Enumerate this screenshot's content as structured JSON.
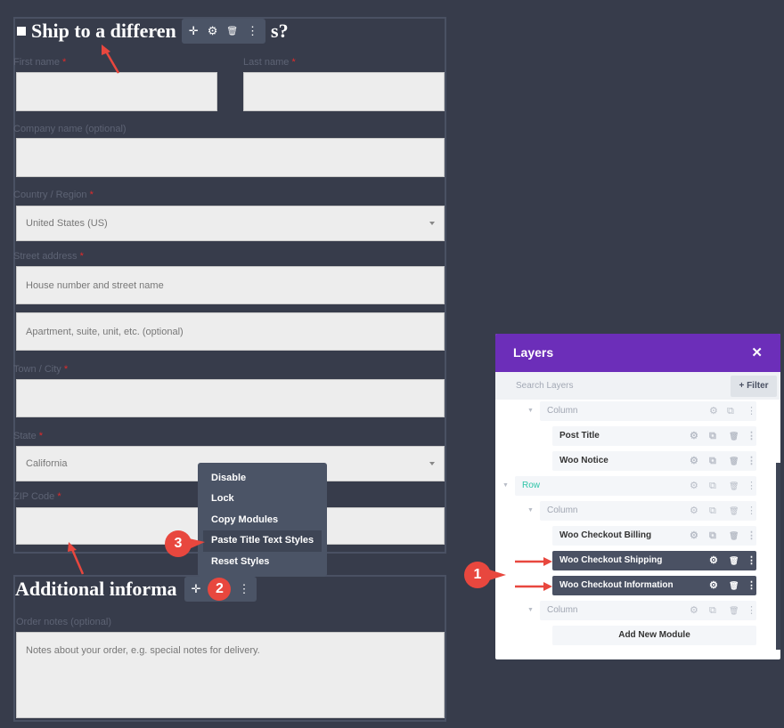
{
  "shipping": {
    "heading": "Ship to a differen",
    "heading_tail": "s?",
    "first_name": "First name",
    "last_name": "Last name",
    "company": "Company name (optional)",
    "country": "Country / Region",
    "country_value": "United States (US)",
    "street": "Street address",
    "street_ph1": "House number and street name",
    "street_ph2": "Apartment, suite, unit, etc. (optional)",
    "town": "Town / City",
    "state": "State",
    "state_value": "California",
    "zip": "ZIP Code",
    "required": "*"
  },
  "additional": {
    "heading": "Additional informa",
    "notes_label": "Order notes (optional)",
    "notes_ph": "Notes about your order, e.g. special notes for delivery."
  },
  "toolbar": {
    "move": "✛",
    "settings": "⚙",
    "delete": "🗑",
    "more": "⋮"
  },
  "context_menu": {
    "items": [
      "Disable",
      "Lock",
      "Copy Modules",
      "Paste Title Text Styles",
      "Reset Styles"
    ],
    "highlighted": "Paste Title Text Styles"
  },
  "layers": {
    "title": "Layers",
    "close": "✕",
    "search_placeholder": "Search Layers",
    "filter": "+ Filter",
    "rows": [
      {
        "label": "Column",
        "kind": "column"
      },
      {
        "label": "Post Title",
        "kind": "module"
      },
      {
        "label": "Woo Notice",
        "kind": "module"
      },
      {
        "label": "Row",
        "kind": "row"
      },
      {
        "label": "Column",
        "kind": "column"
      },
      {
        "label": "Woo Checkout Billing",
        "kind": "module"
      },
      {
        "label": "Woo Checkout Shipping",
        "kind": "selected"
      },
      {
        "label": "Woo Checkout Information",
        "kind": "selected"
      },
      {
        "label": "Column",
        "kind": "column"
      },
      {
        "label": "Add New Module",
        "kind": "add"
      }
    ],
    "accent": "#6c2eb9"
  },
  "annotations": {
    "badges": [
      "1",
      "2",
      "3"
    ],
    "color": "#e8473e"
  }
}
